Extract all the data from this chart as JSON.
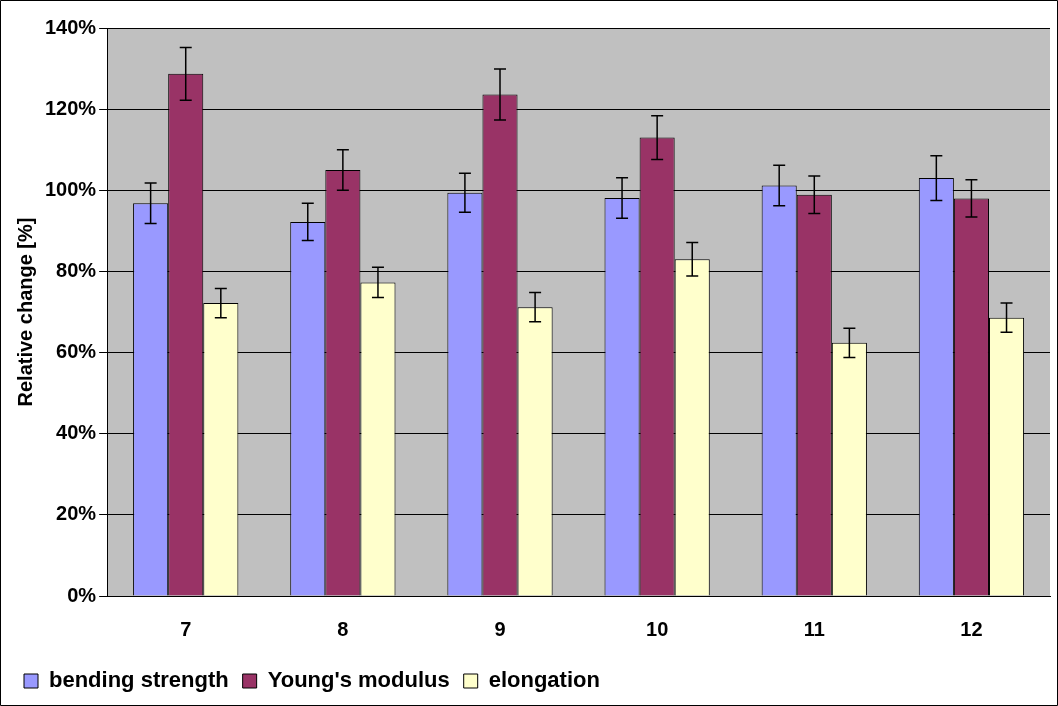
{
  "chart_data": {
    "type": "bar",
    "ylabel": "Relative change [%]",
    "categories": [
      "7",
      "8",
      "9",
      "10",
      "11",
      "12"
    ],
    "series": [
      {
        "name": "bending strength",
        "color": "#9999ff",
        "values": [
          96.8,
          92.2,
          99.4,
          98.1,
          101.2,
          103
        ],
        "errors": [
          5,
          4.6,
          4.8,
          5,
          5,
          5.5
        ]
      },
      {
        "name": "Young's modulus",
        "color": "#993366",
        "values": [
          128.7,
          105,
          123.6,
          113,
          98.9,
          98
        ],
        "errors": [
          6.5,
          5,
          6.3,
          5.4,
          4.6,
          4.6
        ]
      },
      {
        "name": "elongation",
        "color": "#ffffcc",
        "values": [
          72.2,
          77.3,
          71.2,
          83,
          62.4,
          68.6
        ],
        "errors": [
          3.6,
          3.7,
          3.6,
          4.1,
          3.6,
          3.6
        ]
      }
    ],
    "ylim": [
      0,
      140
    ],
    "yticks": [
      {
        "value": 0,
        "label": "0%"
      },
      {
        "value": 20,
        "label": "20%"
      },
      {
        "value": 40,
        "label": "40%"
      },
      {
        "value": 60,
        "label": "60%"
      },
      {
        "value": 80,
        "label": "80%"
      },
      {
        "value": 100,
        "label": "100%"
      },
      {
        "value": 120,
        "label": "120%"
      },
      {
        "value": 140,
        "label": "140%"
      }
    ],
    "grid": "y",
    "legend": "bottom left"
  }
}
